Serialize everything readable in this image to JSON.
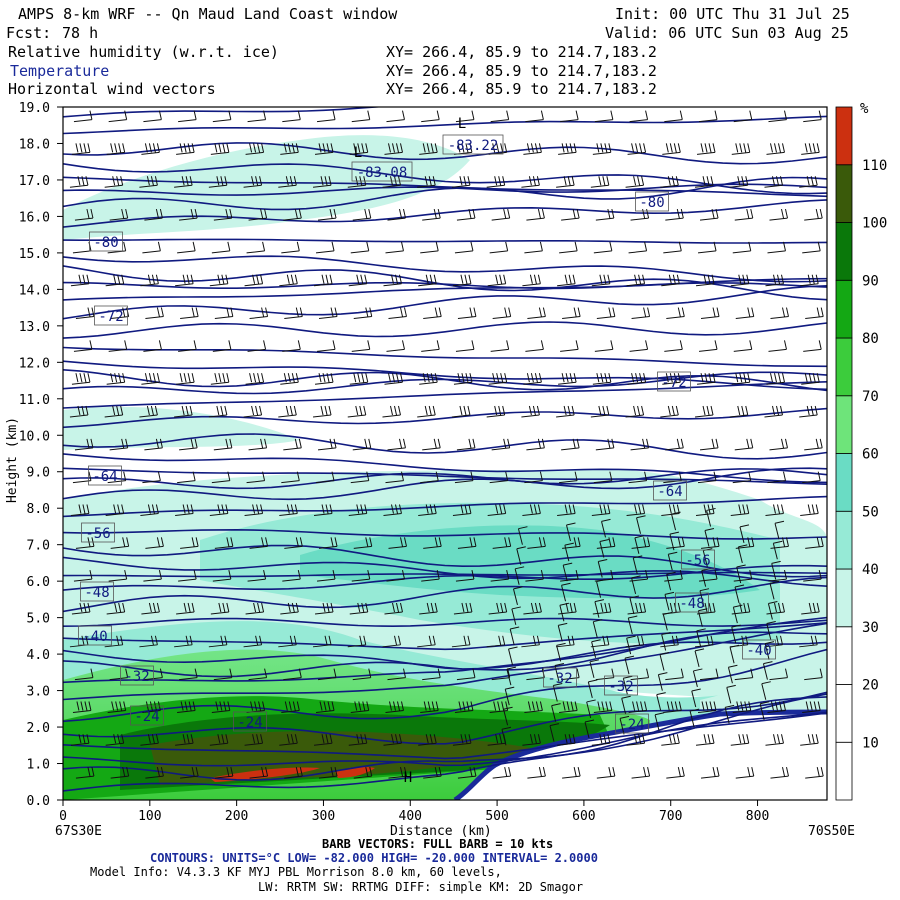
{
  "header": {
    "title": "AMPS 8-km WRF -- Qn Maud Land Coast window",
    "init": "Init: 00 UTC Thu 31 Jul 25",
    "fcst_label": "Fcst:",
    "fcst_value": "78 h",
    "valid": "Valid: 06 UTC Sun 03 Aug 25",
    "fields": [
      {
        "name": "Relative humidity (w.r.t. ice)",
        "xy": "XY= 266.4, 85.9 to 214.7,183.2"
      },
      {
        "name": "Temperature",
        "xy": "XY= 266.4, 85.9 to 214.7,183.2"
      },
      {
        "name": "Horizontal wind vectors",
        "xy": "XY= 266.4, 85.9 to 214.7,183.2"
      }
    ]
  },
  "chart_data": {
    "type": "heatmap",
    "title": "",
    "xlabel": "Distance (km)",
    "ylabel": "Height (km)",
    "xlim": [
      0,
      880
    ],
    "ylim": [
      0,
      19
    ],
    "x_ticks": [
      0,
      100,
      200,
      300,
      400,
      500,
      600,
      700,
      800
    ],
    "y_ticks": [
      "0.0",
      "1.0",
      "2.0",
      "3.0",
      "4.0",
      "5.0",
      "6.0",
      "7.0",
      "8.0",
      "9.0",
      "10.0",
      "11.0",
      "12.0",
      "13.0",
      "14.0",
      "15.0",
      "16.0",
      "17.0",
      "18.0",
      "19.0"
    ],
    "x_end_labels": {
      "left": "67S30E",
      "right": "70S50E"
    },
    "colorbar": {
      "unit": "%",
      "tick_labels": [
        "10",
        "20",
        "30",
        "40",
        "50",
        "60",
        "70",
        "80",
        "90",
        "100",
        "110"
      ],
      "colors": [
        "#ffffff",
        "#ffffff",
        "#ffffff",
        "#c8f4e8",
        "#96ead6",
        "#6adcc4",
        "#6ee47a",
        "#3ccc3c",
        "#14a814",
        "#0a780a",
        "#3a5a0a",
        "#cc3010"
      ]
    },
    "temperature_labels": [
      "-83.22",
      "-83.08",
      "-80",
      "-80",
      "-72",
      "-72",
      "-64",
      "-64",
      "-56",
      "-56",
      "-48",
      "-48",
      "-40",
      "-40",
      "-32",
      "-32",
      "-32",
      "-24",
      "-24",
      "-24"
    ],
    "extrema_labels": [
      "L",
      "L",
      "H"
    ],
    "contours": {
      "units": "°C",
      "low": "-82.000",
      "high": "-20.000",
      "interval": "2.0000"
    },
    "barb_note": "FULL BARB = 10 kts"
  },
  "footer": {
    "barb_prefix": "BARB VECTORS:",
    "barb_text": "FULL BARB = 10 kts",
    "contours_line": "CONTOURS:  UNITS=°C  LOW= -82.000      HIGH= -20.000      INTERVAL=   2.0000",
    "model_info": "Model Info: V4.3.3   KF     MYJ PBL  Morrison          8.0 km,  60 levels,",
    "physics_info": "LW: RRTM SW: RRTMG   DIFF: simple KM: 2D Smagor"
  }
}
